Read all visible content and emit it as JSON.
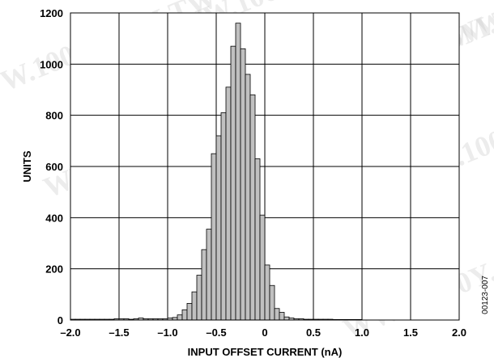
{
  "figure_id": "00123-007",
  "watermark": "WWW.100Y.COM.TW",
  "colors": {
    "bar_fill": "#c0c0c0",
    "bar_stroke": "#000000",
    "grid": "#000000",
    "background": "#ffffff"
  },
  "chart_data": {
    "type": "bar",
    "xlabel": "INPUT OFFSET CURRENT (nA)",
    "ylabel": "UNITS",
    "xlim": [
      -2.0,
      2.0
    ],
    "ylim": [
      0,
      1200
    ],
    "grid": true,
    "x_ticks": [
      {
        "value": -2.0,
        "label": "–2.0"
      },
      {
        "value": -1.5,
        "label": "–1.5"
      },
      {
        "value": -1.0,
        "label": "–1.0"
      },
      {
        "value": -0.5,
        "label": "–0.5"
      },
      {
        "value": 0,
        "label": "0"
      },
      {
        "value": 0.5,
        "label": "0.5"
      },
      {
        "value": 1.0,
        "label": "1.0"
      },
      {
        "value": 1.5,
        "label": "1.5"
      },
      {
        "value": 2.0,
        "label": "2.0"
      }
    ],
    "y_ticks": [
      {
        "value": 0,
        "label": "0"
      },
      {
        "value": 200,
        "label": "200"
      },
      {
        "value": 400,
        "label": "400"
      },
      {
        "value": 600,
        "label": "600"
      },
      {
        "value": 800,
        "label": "800"
      },
      {
        "value": 1000,
        "label": "1000"
      },
      {
        "value": 1200,
        "label": "1200"
      }
    ],
    "bin_width": 0.05,
    "bins": [
      {
        "x": -2.0,
        "value": 3
      },
      {
        "x": -1.95,
        "value": 3
      },
      {
        "x": -1.9,
        "value": 3
      },
      {
        "x": -1.85,
        "value": 3
      },
      {
        "x": -1.8,
        "value": 3
      },
      {
        "x": -1.75,
        "value": 3
      },
      {
        "x": -1.7,
        "value": 3
      },
      {
        "x": -1.65,
        "value": 3
      },
      {
        "x": -1.6,
        "value": 3
      },
      {
        "x": -1.55,
        "value": 5
      },
      {
        "x": -1.5,
        "value": 5
      },
      {
        "x": -1.45,
        "value": 5
      },
      {
        "x": -1.4,
        "value": 3
      },
      {
        "x": -1.35,
        "value": 5
      },
      {
        "x": -1.3,
        "value": 8
      },
      {
        "x": -1.25,
        "value": 5
      },
      {
        "x": -1.2,
        "value": 5
      },
      {
        "x": -1.15,
        "value": 5
      },
      {
        "x": -1.1,
        "value": 5
      },
      {
        "x": -1.05,
        "value": 5
      },
      {
        "x": -1.0,
        "value": 8
      },
      {
        "x": -0.95,
        "value": 10
      },
      {
        "x": -0.9,
        "value": 20
      },
      {
        "x": -0.85,
        "value": 40
      },
      {
        "x": -0.8,
        "value": 65
      },
      {
        "x": -0.75,
        "value": 110
      },
      {
        "x": -0.7,
        "value": 175
      },
      {
        "x": -0.65,
        "value": 275
      },
      {
        "x": -0.6,
        "value": 355
      },
      {
        "x": -0.55,
        "value": 650
      },
      {
        "x": -0.5,
        "value": 720
      },
      {
        "x": -0.45,
        "value": 810
      },
      {
        "x": -0.4,
        "value": 910
      },
      {
        "x": -0.35,
        "value": 1070
      },
      {
        "x": -0.3,
        "value": 1160
      },
      {
        "x": -0.25,
        "value": 1060
      },
      {
        "x": -0.2,
        "value": 960
      },
      {
        "x": -0.15,
        "value": 880
      },
      {
        "x": -0.1,
        "value": 630
      },
      {
        "x": -0.05,
        "value": 410
      },
      {
        "x": 0.0,
        "value": 215
      },
      {
        "x": 0.05,
        "value": 135
      },
      {
        "x": 0.1,
        "value": 45
      },
      {
        "x": 0.15,
        "value": 30
      },
      {
        "x": 0.2,
        "value": 12
      },
      {
        "x": 0.25,
        "value": 8
      },
      {
        "x": 0.3,
        "value": 5
      },
      {
        "x": 0.35,
        "value": 5
      },
      {
        "x": 0.4,
        "value": 3
      },
      {
        "x": 0.45,
        "value": 3
      },
      {
        "x": 0.5,
        "value": 3
      },
      {
        "x": 0.55,
        "value": 3
      },
      {
        "x": 0.6,
        "value": 3
      },
      {
        "x": 0.65,
        "value": 3
      },
      {
        "x": 0.7,
        "value": 2
      },
      {
        "x": 0.75,
        "value": 2
      },
      {
        "x": 0.8,
        "value": 2
      },
      {
        "x": 0.85,
        "value": 2
      },
      {
        "x": 0.9,
        "value": 2
      },
      {
        "x": 0.95,
        "value": 2
      }
    ]
  }
}
